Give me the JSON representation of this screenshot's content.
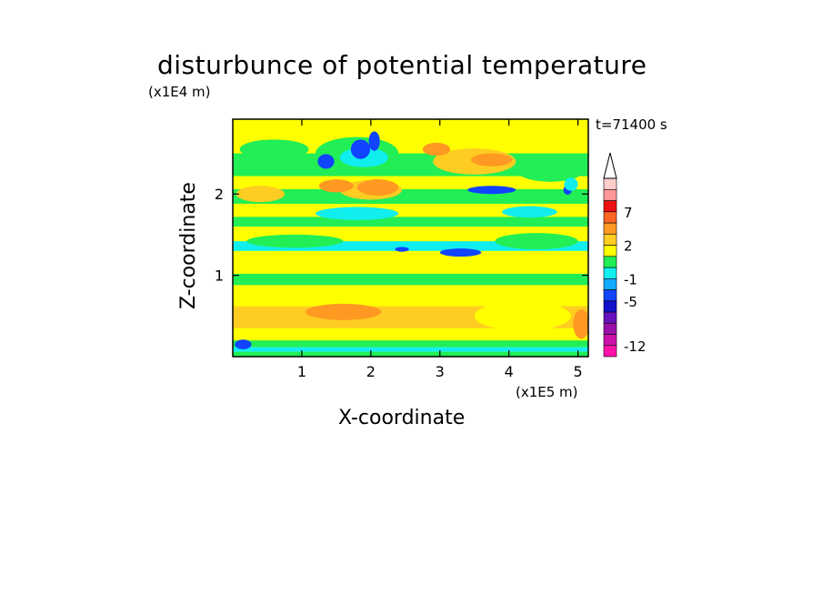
{
  "chart_data": {
    "type": "heatmap",
    "title": "disturbunce of potential temperature",
    "xlabel": "X-coordinate",
    "ylabel": "Z-coordinate",
    "x_unit": "(x1E5 m)",
    "y_unit": "(x1E4 m)",
    "annotation": "t=71400 s",
    "xlim": [
      0,
      5.15
    ],
    "ylim": [
      0,
      2.92
    ],
    "x_ticks": [
      {
        "value": 1,
        "label": "1"
      },
      {
        "value": 2,
        "label": "2"
      },
      {
        "value": 3,
        "label": "3"
      },
      {
        "value": 4,
        "label": "4"
      },
      {
        "value": 5,
        "label": "5"
      }
    ],
    "y_ticks": [
      {
        "value": 1,
        "label": "1"
      },
      {
        "value": 2,
        "label": "2"
      }
    ],
    "colorbar": {
      "extend_max": true,
      "levels": [
        {
          "from": -14,
          "to": -12,
          "color": "#ff11aa"
        },
        {
          "from": -12,
          "to": -10,
          "color": "#cc11aa"
        },
        {
          "from": -10,
          "to": -8,
          "color": "#9911aa"
        },
        {
          "from": -8,
          "to": -6,
          "color": "#6611bb"
        },
        {
          "from": -6,
          "to": -5,
          "color": "#1111cc"
        },
        {
          "from": -5,
          "to": -3,
          "color": "#1144ff"
        },
        {
          "from": -3,
          "to": -1,
          "color": "#11aaff"
        },
        {
          "from": -1,
          "to": 0,
          "color": "#11eeee"
        },
        {
          "from": 0,
          "to": 1,
          "color": "#22ee55"
        },
        {
          "from": 1,
          "to": 2,
          "color": "#ffff00"
        },
        {
          "from": 2,
          "to": 3,
          "color": "#ffcc22"
        },
        {
          "from": 3,
          "to": 5,
          "color": "#ff9922"
        },
        {
          "from": 5,
          "to": 7,
          "color": "#ff6622"
        },
        {
          "from": 7,
          "to": 9,
          "color": "#ee1111"
        },
        {
          "from": 9,
          "to": 11,
          "color": "#ff9999"
        },
        {
          "from": 11,
          "to": 13,
          "color": "#ffcccc"
        }
      ],
      "tick_labels": [
        {
          "value": -12,
          "label": "-12"
        },
        {
          "value": -5,
          "label": "-5"
        },
        {
          "value": -1,
          "label": "-1"
        },
        {
          "value": 2,
          "label": "2"
        },
        {
          "value": 7,
          "label": "7"
        }
      ]
    },
    "background_level": 1,
    "regions": [
      {
        "kind": "band",
        "z": [
          0.0,
          0.06
        ],
        "level": 0
      },
      {
        "kind": "band",
        "z": [
          0.06,
          0.12
        ],
        "level": -1
      },
      {
        "kind": "band",
        "z": [
          0.12,
          0.2
        ],
        "level": 0
      },
      {
        "kind": "band",
        "z": [
          0.2,
          0.62
        ],
        "level": 1
      },
      {
        "kind": "band",
        "z": [
          0.35,
          0.62
        ],
        "level": 2
      },
      {
        "kind": "band",
        "z": [
          0.62,
          0.88
        ],
        "level": 1
      },
      {
        "kind": "band",
        "z": [
          0.88,
          1.02
        ],
        "level": 0
      },
      {
        "kind": "band",
        "z": [
          1.02,
          1.3
        ],
        "level": 1
      },
      {
        "kind": "band",
        "z": [
          1.3,
          1.42
        ],
        "level": -1
      },
      {
        "kind": "band",
        "z": [
          1.42,
          1.6
        ],
        "level": 1
      },
      {
        "kind": "band",
        "z": [
          1.6,
          1.72
        ],
        "level": 0
      },
      {
        "kind": "band",
        "z": [
          1.72,
          1.88
        ],
        "level": 1
      },
      {
        "kind": "band",
        "z": [
          1.88,
          2.06
        ],
        "level": 0
      },
      {
        "kind": "band",
        "z": [
          2.06,
          2.22
        ],
        "level": 1
      },
      {
        "kind": "band",
        "z": [
          2.22,
          2.5
        ],
        "level": 0
      },
      {
        "kind": "band",
        "z": [
          2.5,
          2.92
        ],
        "level": 1
      },
      {
        "kind": "blob",
        "x": 1.6,
        "z": 0.55,
        "rx": 0.55,
        "rz": 0.1,
        "level": 3
      },
      {
        "kind": "blob",
        "x": 5.05,
        "z": 0.4,
        "rx": 0.12,
        "rz": 0.18,
        "level": 3
      },
      {
        "kind": "blob",
        "x": 4.2,
        "z": 0.5,
        "rx": 0.7,
        "rz": 0.18,
        "level": 1
      },
      {
        "kind": "blob",
        "x": 0.9,
        "z": 1.42,
        "rx": 0.7,
        "rz": 0.08,
        "level": 0
      },
      {
        "kind": "blob",
        "x": 4.4,
        "z": 1.42,
        "rx": 0.6,
        "rz": 0.1,
        "level": 0
      },
      {
        "kind": "blob",
        "x": 3.3,
        "z": 1.28,
        "rx": 0.3,
        "rz": 0.05,
        "level": -5
      },
      {
        "kind": "blob",
        "x": 2.45,
        "z": 1.32,
        "rx": 0.1,
        "rz": 0.03,
        "level": -5
      },
      {
        "kind": "blob",
        "x": 2.0,
        "z": 2.05,
        "rx": 0.45,
        "rz": 0.12,
        "level": 2
      },
      {
        "kind": "blob",
        "x": 1.5,
        "z": 2.1,
        "rx": 0.25,
        "rz": 0.08,
        "level": 3
      },
      {
        "kind": "blob",
        "x": 2.1,
        "z": 2.08,
        "rx": 0.3,
        "rz": 0.1,
        "level": 3
      },
      {
        "kind": "blob",
        "x": 3.5,
        "z": 2.4,
        "rx": 0.6,
        "rz": 0.16,
        "level": 2
      },
      {
        "kind": "blob",
        "x": 3.75,
        "z": 2.42,
        "rx": 0.3,
        "rz": 0.08,
        "level": 3
      },
      {
        "kind": "blob",
        "x": 2.95,
        "z": 2.55,
        "rx": 0.2,
        "rz": 0.08,
        "level": 3
      },
      {
        "kind": "blob",
        "x": 0.6,
        "z": 2.55,
        "rx": 0.5,
        "rz": 0.12,
        "level": 0
      },
      {
        "kind": "blob",
        "x": 4.6,
        "z": 2.3,
        "rx": 0.5,
        "rz": 0.15,
        "level": 0
      },
      {
        "kind": "blob",
        "x": 1.8,
        "z": 2.5,
        "rx": 0.6,
        "rz": 0.2,
        "level": 0
      },
      {
        "kind": "blob",
        "x": 1.9,
        "z": 2.45,
        "rx": 0.35,
        "rz": 0.12,
        "level": -1
      },
      {
        "kind": "blob",
        "x": 1.35,
        "z": 2.4,
        "rx": 0.12,
        "rz": 0.09,
        "level": -5
      },
      {
        "kind": "blob",
        "x": 1.85,
        "z": 2.55,
        "rx": 0.14,
        "rz": 0.12,
        "level": -5
      },
      {
        "kind": "blob",
        "x": 2.05,
        "z": 2.65,
        "rx": 0.08,
        "rz": 0.12,
        "level": -5
      },
      {
        "kind": "blob",
        "x": 3.75,
        "z": 2.05,
        "rx": 0.35,
        "rz": 0.05,
        "level": -5
      },
      {
        "kind": "blob",
        "x": 4.85,
        "z": 2.05,
        "rx": 0.06,
        "rz": 0.06,
        "level": -5
      },
      {
        "kind": "blob",
        "x": 4.9,
        "z": 2.12,
        "rx": 0.1,
        "rz": 0.08,
        "level": -1
      },
      {
        "kind": "blob",
        "x": 1.8,
        "z": 1.76,
        "rx": 0.6,
        "rz": 0.08,
        "level": -1
      },
      {
        "kind": "blob",
        "x": 4.3,
        "z": 1.78,
        "rx": 0.4,
        "rz": 0.07,
        "level": -1
      },
      {
        "kind": "blob",
        "x": 0.4,
        "z": 2.0,
        "rx": 0.35,
        "rz": 0.1,
        "level": 2
      },
      {
        "kind": "blob",
        "x": 0.15,
        "z": 0.15,
        "rx": 0.12,
        "rz": 0.06,
        "level": -5
      }
    ]
  }
}
